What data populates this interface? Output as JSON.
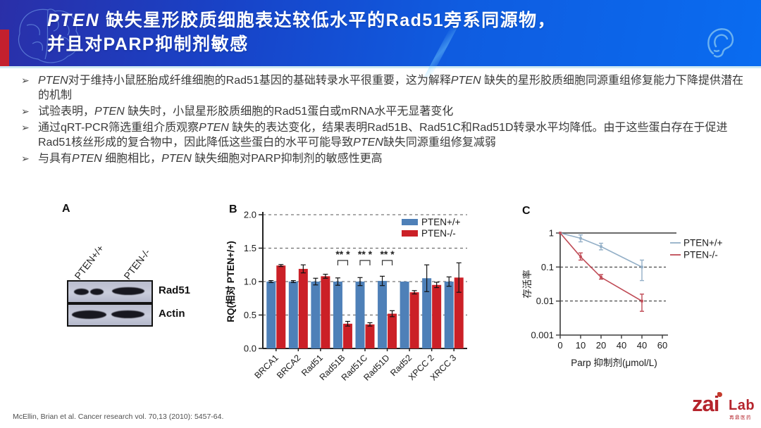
{
  "header": {
    "title_italic": "PTEN",
    "title_line1_rest": " 缺失星形胶质细胞表达较低水平的Rad51旁系同源物，",
    "title_line2": "并且对PARP抑制剂敏感"
  },
  "bullets": [
    "PTEN对于维持小鼠胚胎成纤维细胞的Rad51基因的基础转录水平很重要，这为解释PTEN 缺失的星形胶质细胞同源重组修复能力下降提供潜在的机制",
    "试验表明，PTEN 缺失时，小鼠星形胶质细胞的Rad51蛋白或mRNA水平无显著变化",
    "通过qRT-PCR筛选重组介质观察PTEN 缺失的表达变化，结果表明Rad51B、Rad51C和Rad51D转录水平均降低。由于这些蛋白存在于促进Rad51核丝形成的复合物中，因此降低这些蛋白的水平可能导致PTEN缺失同源重组修复减弱",
    "与具有PTEN 细胞相比，PTEN 缺失细胞对PARP抑制剂的敏感性更高"
  ],
  "bullet_marker": "➢",
  "panels": {
    "a": "A",
    "b": "B",
    "c": "C"
  },
  "western_blot": {
    "lane_labels": [
      "PTEN+/+",
      "PTEN-/-"
    ],
    "row_labels": [
      "Rad51",
      "Actin"
    ]
  },
  "chart_data": [
    {
      "panel": "B",
      "type": "bar",
      "title": "",
      "ylabel": "RQ(相对 PTEN+/+)",
      "ylim": [
        0,
        2
      ],
      "yticks": [
        "0.0",
        "0.5",
        "1.0",
        "1.5",
        "2.0"
      ],
      "grid": "dashed-horizontal",
      "legend_position": "top-right",
      "categories": [
        "BRCA1",
        "BRCA2",
        "Rad51",
        "Rad51B",
        "Rad51C",
        "Rad51D",
        "Rad52",
        "XPCC 2",
        "XRCC 3"
      ],
      "series": [
        {
          "name": "PTEN+/+",
          "color": "#4e80b8",
          "values": [
            1.0,
            1.0,
            1.0,
            1.0,
            1.0,
            1.01,
            1.0,
            1.05,
            1.0
          ],
          "errors": [
            0.015,
            0.015,
            0.05,
            0.055,
            0.06,
            0.07,
            0.012,
            0.2,
            0.07
          ]
        },
        {
          "name": "PTEN-/-",
          "color": "#cb2027",
          "values": [
            1.24,
            1.19,
            1.08,
            0.37,
            0.36,
            0.52,
            0.84,
            0.95,
            1.06
          ],
          "errors": [
            0.015,
            0.06,
            0.03,
            0.035,
            0.025,
            0.045,
            0.025,
            0.04,
            0.22
          ]
        }
      ],
      "significance": [
        {
          "category": "Rad51B",
          "label": "**  *"
        },
        {
          "category": "Rad51C",
          "label": "**  *"
        },
        {
          "category": "Rad51D",
          "label": "**  *"
        }
      ]
    },
    {
      "panel": "C",
      "type": "line",
      "title": "",
      "xlabel": "Parp 抑制剂(μmol/L)",
      "ylabel": "存活率",
      "yscale": "log",
      "yticks": [
        "1",
        "0.1",
        "0.01",
        "0.001"
      ],
      "xtick_labels": [
        "0",
        "10",
        "20",
        "40",
        "40",
        "60"
      ],
      "reference_lines": [
        0.1,
        0.01
      ],
      "series": [
        {
          "name": "PTEN+/+",
          "color": "#93afc7",
          "points": [
            {
              "ti": 0,
              "y": 1
            },
            {
              "ti": 1,
              "y": 0.7,
              "lo": 0.55,
              "hi": 0.88
            },
            {
              "ti": 2,
              "y": 0.4,
              "lo": 0.32,
              "hi": 0.5
            },
            {
              "ti": 4,
              "y": 0.1,
              "lo": 0.04,
              "hi": 0.16
            }
          ]
        },
        {
          "name": "PTEN-/-",
          "color": "#bf4a55",
          "points": [
            {
              "ti": 0,
              "y": 1
            },
            {
              "ti": 1,
              "y": 0.2,
              "lo": 0.16,
              "hi": 0.26
            },
            {
              "ti": 2,
              "y": 0.05,
              "lo": 0.044,
              "hi": 0.06
            },
            {
              "ti": 4,
              "y": 0.01,
              "lo": 0.005,
              "hi": 0.016
            }
          ]
        }
      ]
    }
  ],
  "footer": {
    "citation": "McEllin, Brian et al.  Cancer research vol. 70,13 (2010): 5457-64.",
    "logo_zai": "zai",
    "logo_lab": "Lab",
    "logo_cn": "再鼎医药"
  },
  "colors": {
    "header_accent_red": "#c3202e",
    "bar_blue": "#4e80b8",
    "bar_red": "#cb2027"
  }
}
